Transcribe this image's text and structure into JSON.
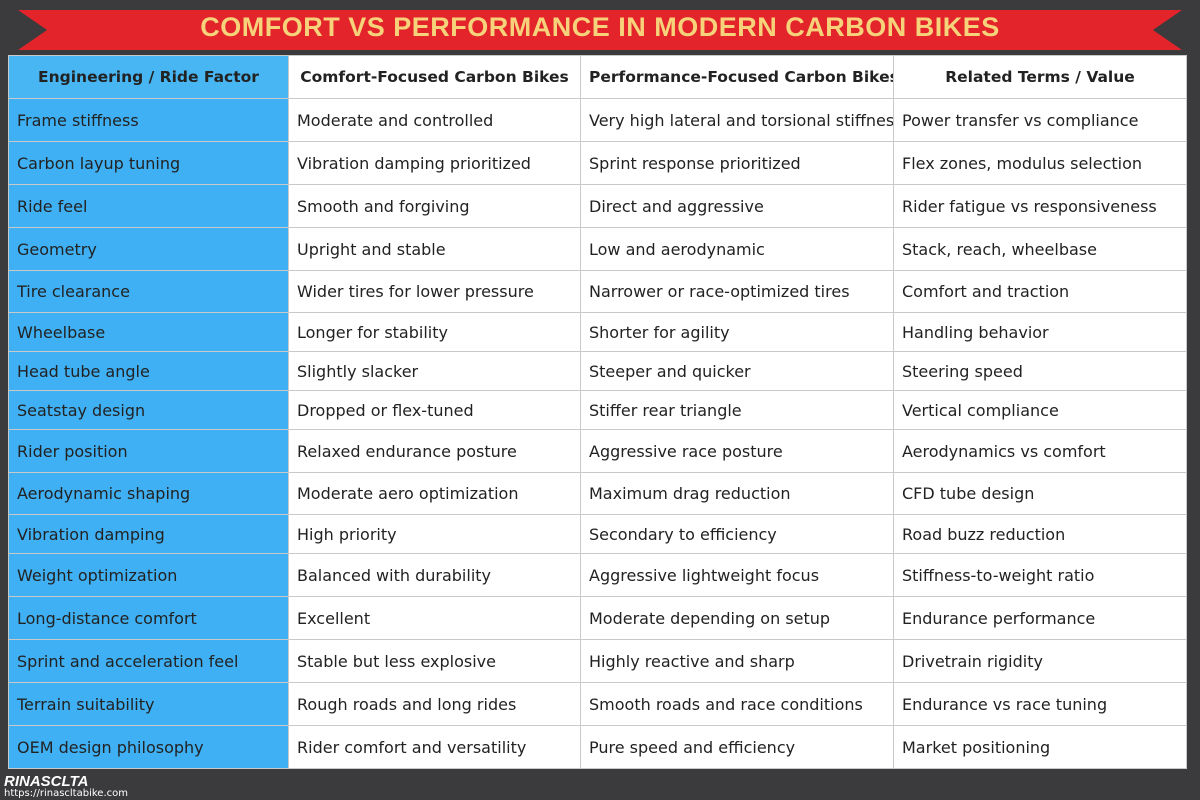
{
  "header": {
    "title": "COMFORT VS PERFORMANCE IN MODERN CARBON BIKES"
  },
  "table": {
    "columns": [
      "Engineering / Ride Factor",
      "Comfort-Focused Carbon Bikes",
      "Performance-Focused Carbon Bikes",
      "Related Terms / Value"
    ],
    "rows": [
      [
        "Frame stiffness",
        "Moderate and controlled",
        "Very high lateral and torsional stiffness",
        "Power transfer vs compliance"
      ],
      [
        "Carbon layup tuning",
        "Vibration damping prioritized",
        "Sprint response prioritized",
        "Flex zones, modulus selection"
      ],
      [
        "Ride feel",
        "Smooth and forgiving",
        "Direct and aggressive",
        "Rider fatigue vs responsiveness"
      ],
      [
        "Geometry",
        "Upright and stable",
        "Low and aerodynamic",
        "Stack, reach, wheelbase"
      ],
      [
        "Tire clearance",
        "Wider tires for lower pressure",
        "Narrower or race-optimized tires",
        "Comfort and traction"
      ],
      [
        "Wheelbase",
        "Longer for stability",
        "Shorter for agility",
        "Handling behavior"
      ],
      [
        "Head tube angle",
        "Slightly slacker",
        "Steeper and quicker",
        "Steering speed"
      ],
      [
        "Seatstay design",
        "Dropped or flex-tuned",
        "Stiffer rear triangle",
        "Vertical compliance"
      ],
      [
        "Rider position",
        "Relaxed endurance posture",
        "Aggressive race posture",
        "Aerodynamics vs comfort"
      ],
      [
        "Aerodynamic shaping",
        "Moderate aero optimization",
        "Maximum drag reduction",
        "CFD tube design"
      ],
      [
        "Vibration damping",
        "High priority",
        "Secondary to efficiency",
        "Road buzz reduction"
      ],
      [
        "Weight optimization",
        "Balanced with durability",
        "Aggressive lightweight focus",
        "Stiffness-to-weight ratio"
      ],
      [
        "Long-distance comfort",
        "Excellent",
        "Moderate depending on setup",
        "Endurance performance"
      ],
      [
        "Sprint and acceleration feel",
        "Stable but less explosive",
        "Highly reactive and sharp",
        "Drivetrain rigidity"
      ],
      [
        "Terrain suitability",
        "Rough roads and long rides",
        "Smooth roads and race conditions",
        "Endurance vs race tuning"
      ],
      [
        "OEM design philosophy",
        "Rider comfort and versatility",
        "Pure speed and efficiency",
        "Market positioning"
      ]
    ]
  },
  "footer": {
    "brand": "RINASCLTA",
    "url": "https://rinascltabike.com"
  }
}
